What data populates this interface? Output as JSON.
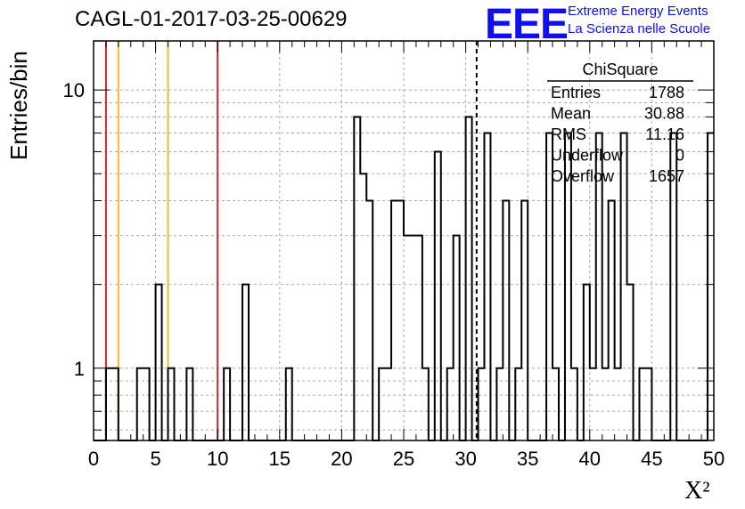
{
  "header": {
    "title": "CAGL-01-2017-03-25-00629",
    "logo_text": "EEE",
    "logo_line1": "Extreme Energy Events",
    "logo_line2": "La Scienza nelle Scuole"
  },
  "chart_data": {
    "type": "bar",
    "title": "CAGL-01-2017-03-25-00629",
    "xlabel": "X²",
    "ylabel": "Entries/bin",
    "xlim": [
      0,
      50
    ],
    "ylim": [
      0.55,
      15
    ],
    "yscale": "log",
    "grid": true,
    "x_ticks": [
      0,
      5,
      10,
      15,
      20,
      25,
      30,
      35,
      40,
      45,
      50
    ],
    "y_ticks": [
      1,
      10
    ],
    "bin_width": 0.5,
    "bins": [
      {
        "x": 1.0,
        "y": 1
      },
      {
        "x": 1.5,
        "y": 1
      },
      {
        "x": 3.5,
        "y": 1
      },
      {
        "x": 4.0,
        "y": 1
      },
      {
        "x": 5.0,
        "y": 2
      },
      {
        "x": 6.0,
        "y": 1
      },
      {
        "x": 7.5,
        "y": 1
      },
      {
        "x": 10.5,
        "y": 1
      },
      {
        "x": 12.0,
        "y": 2
      },
      {
        "x": 15.5,
        "y": 1
      },
      {
        "x": 21.0,
        "y": 8
      },
      {
        "x": 21.5,
        "y": 5
      },
      {
        "x": 22.0,
        "y": 4
      },
      {
        "x": 23.0,
        "y": 1
      },
      {
        "x": 23.5,
        "y": 1
      },
      {
        "x": 24.0,
        "y": 4
      },
      {
        "x": 24.5,
        "y": 4
      },
      {
        "x": 25.0,
        "y": 3
      },
      {
        "x": 25.5,
        "y": 3
      },
      {
        "x": 26.0,
        "y": 3
      },
      {
        "x": 26.5,
        "y": 1
      },
      {
        "x": 27.5,
        "y": 6
      },
      {
        "x": 28.5,
        "y": 1
      },
      {
        "x": 29.0,
        "y": 3
      },
      {
        "x": 30.0,
        "y": 8
      },
      {
        "x": 31.0,
        "y": 1
      },
      {
        "x": 31.5,
        "y": 7
      },
      {
        "x": 32.5,
        "y": 1
      },
      {
        "x": 33.0,
        "y": 4
      },
      {
        "x": 34.0,
        "y": 1
      },
      {
        "x": 34.5,
        "y": 4
      },
      {
        "x": 36.5,
        "y": 7
      },
      {
        "x": 37.0,
        "y": 1
      },
      {
        "x": 38.0,
        "y": 7
      },
      {
        "x": 38.5,
        "y": 1
      },
      {
        "x": 39.5,
        "y": 2
      },
      {
        "x": 40.0,
        "y": 1
      },
      {
        "x": 40.5,
        "y": 7
      },
      {
        "x": 41.0,
        "y": 1
      },
      {
        "x": 41.5,
        "y": 4
      },
      {
        "x": 42.0,
        "y": 1
      },
      {
        "x": 42.5,
        "y": 7
      },
      {
        "x": 43.0,
        "y": 2
      },
      {
        "x": 44.0,
        "y": 1
      },
      {
        "x": 44.5,
        "y": 1
      },
      {
        "x": 46.5,
        "y": 7
      },
      {
        "x": 49.5,
        "y": 7
      }
    ],
    "reference_lines": [
      {
        "x": 1.0,
        "color": "#dd2222",
        "style": "solid"
      },
      {
        "x": 2.0,
        "color": "#f0c020",
        "style": "solid"
      },
      {
        "x": 6.0,
        "color": "#f0c020",
        "style": "solid"
      },
      {
        "x": 10.0,
        "color": "#dd2222",
        "style": "solid"
      },
      {
        "x": 30.88,
        "color": "#000000",
        "style": "dashed"
      }
    ],
    "stats_box": {
      "title": "ChiSquare",
      "rows": [
        {
          "label": "Entries",
          "value": "1788"
        },
        {
          "label": "Mean",
          "value": "30.88"
        },
        {
          "label": "RMS",
          "value": "11.16"
        },
        {
          "label": "Underflow",
          "value": "0"
        },
        {
          "label": "Overflow",
          "value": "1657"
        }
      ]
    }
  }
}
